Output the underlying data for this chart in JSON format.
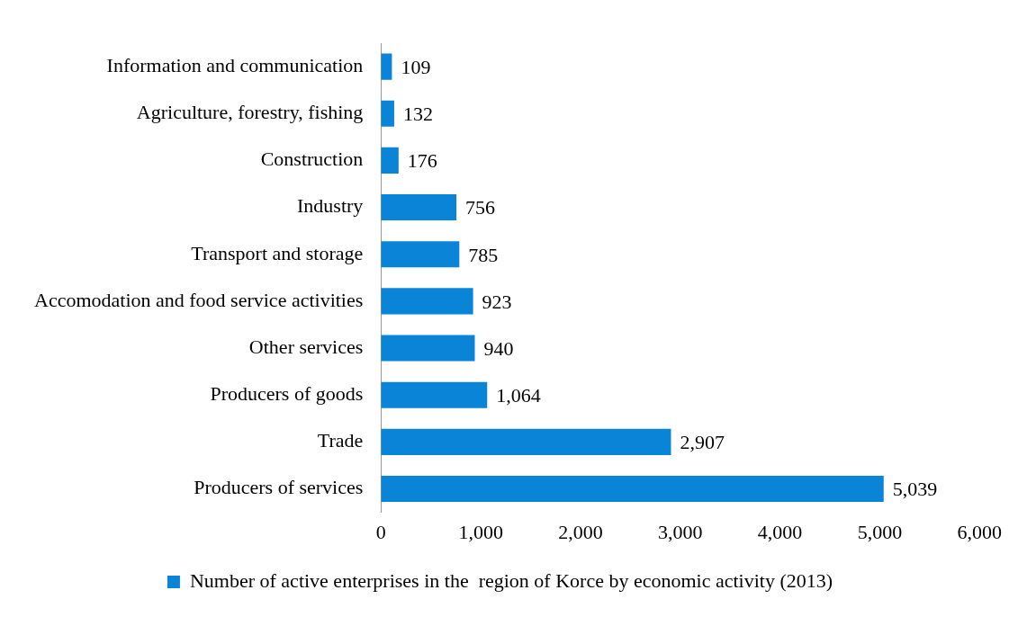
{
  "chart_data": {
    "type": "bar",
    "orientation": "horizontal",
    "categories": [
      "Information and communication",
      "Agriculture, forestry, fishing",
      "Construction",
      "Industry",
      "Transport and storage",
      "Accomodation and food service activities",
      "Other services",
      "Producers of goods",
      "Trade",
      "Producers of services"
    ],
    "series": [
      {
        "name": "Number of active enterprises in the  region of Korce by economic activity (2013)",
        "color": "#0a84d6",
        "values": [
          109,
          132,
          176,
          756,
          785,
          923,
          940,
          1064,
          2907,
          5039
        ],
        "value_labels": [
          "109",
          "132",
          "176",
          "756",
          "785",
          "923",
          "940",
          "1,064",
          "2,907",
          "5,039"
        ]
      }
    ],
    "xlim": [
      0,
      6000
    ],
    "xticks": [
      0,
      {
        "value": 1000,
        "label": "1,000"
      },
      {
        "value": 2000,
        "label": "2,000"
      },
      {
        "value": 3000,
        "label": "3,000"
      },
      {
        "value": 4000,
        "label": "4,000"
      },
      {
        "value": 5000,
        "label": "5,000"
      },
      {
        "value": 6000,
        "label": "6,000"
      }
    ],
    "grid": false,
    "legend": "bottom"
  }
}
